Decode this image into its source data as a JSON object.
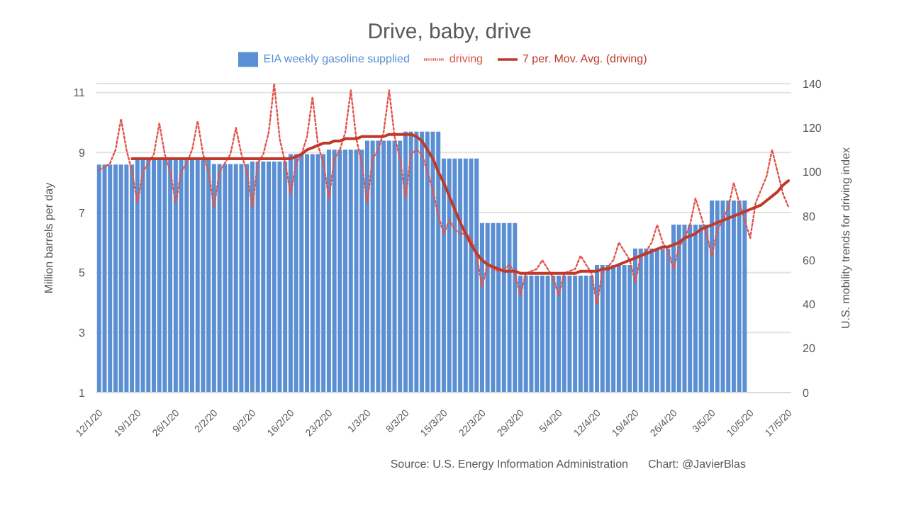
{
  "chart_data": {
    "type": "bar",
    "title": "Drive, baby, drive",
    "ylabel": "Million barrels per day",
    "y2label": "U.S. mobility trends for driving index",
    "categories": [
      "12/1/20",
      null,
      null,
      null,
      null,
      null,
      null,
      "19/1/20",
      null,
      null,
      null,
      null,
      null,
      null,
      "26/1/20",
      null,
      null,
      null,
      null,
      null,
      null,
      "2/2/20",
      null,
      null,
      null,
      null,
      null,
      null,
      "9/2/20",
      null,
      null,
      null,
      null,
      null,
      null,
      "16/2/20",
      null,
      null,
      null,
      null,
      null,
      null,
      "23/2/20",
      null,
      null,
      null,
      null,
      null,
      null,
      "1/3/20",
      null,
      null,
      null,
      null,
      null,
      null,
      "8/3/20",
      null,
      null,
      null,
      null,
      null,
      null,
      "15/3/20",
      null,
      null,
      null,
      null,
      null,
      null,
      "22/3/20",
      null,
      null,
      null,
      null,
      null,
      null,
      "29/3/20",
      null,
      null,
      null,
      null,
      null,
      null,
      "5/4/20",
      null,
      null,
      null,
      null,
      null,
      null,
      "12/4/20",
      null,
      null,
      null,
      null,
      null,
      null,
      "19/4/20",
      null,
      null,
      null,
      null,
      null,
      null,
      "26/4/20",
      null,
      null,
      null,
      null,
      null,
      null,
      "3/5/20",
      null,
      null,
      null,
      null,
      null,
      null,
      "10/5/20",
      null,
      null,
      null,
      null,
      null,
      null,
      "17/5/20"
    ],
    "series": [
      {
        "name": "EIA weekly gasoline supplied",
        "color": "#5b8fd3",
        "values": [
          8.6,
          8.6,
          8.6,
          8.6,
          8.6,
          8.6,
          8.6,
          8.82,
          8.82,
          8.82,
          8.82,
          8.82,
          8.82,
          8.82,
          8.82,
          8.82,
          8.82,
          8.82,
          8.82,
          8.82,
          8.82,
          8.62,
          8.62,
          8.62,
          8.62,
          8.62,
          8.62,
          8.62,
          8.7,
          8.7,
          8.7,
          8.7,
          8.7,
          8.7,
          8.7,
          8.95,
          8.95,
          8.95,
          8.95,
          8.95,
          8.95,
          8.95,
          9.1,
          9.1,
          9.1,
          9.1,
          9.1,
          9.1,
          9.1,
          9.4,
          9.4,
          9.4,
          9.4,
          9.4,
          9.4,
          9.4,
          9.7,
          9.7,
          9.7,
          9.7,
          9.7,
          9.7,
          9.7,
          8.8,
          8.8,
          8.8,
          8.8,
          8.8,
          8.8,
          8.8,
          6.65,
          6.65,
          6.65,
          6.65,
          6.65,
          6.65,
          6.65,
          4.9,
          4.9,
          4.9,
          4.9,
          4.9,
          4.9,
          4.9,
          4.9,
          4.9,
          4.9,
          4.9,
          4.9,
          4.9,
          4.9,
          5.25,
          5.25,
          5.25,
          5.25,
          5.25,
          5.25,
          5.25,
          5.8,
          5.8,
          5.8,
          5.8,
          5.8,
          5.8,
          5.8,
          6.6,
          6.6,
          6.6,
          6.6,
          6.6,
          6.6,
          6.6,
          7.4,
          7.4,
          7.4,
          7.4,
          7.4,
          7.4,
          7.4,
          null,
          null,
          null,
          null,
          null,
          null,
          null,
          null
        ]
      },
      {
        "name": "driving",
        "type": "line",
        "axis": "y2",
        "color": "#e0554c",
        "line_style": "dotted",
        "values": [
          101,
          102,
          104,
          110,
          124,
          110,
          100,
          86,
          100,
          104,
          108,
          122,
          108,
          100,
          86,
          100,
          104,
          110,
          123,
          108,
          100,
          84,
          100,
          104,
          108,
          120,
          108,
          100,
          84,
          104,
          108,
          118,
          140,
          115,
          104,
          90,
          104,
          108,
          116,
          134,
          112,
          104,
          88,
          106,
          110,
          118,
          137,
          115,
          104,
          86,
          106,
          110,
          118,
          137,
          116,
          106,
          88,
          108,
          110,
          108,
          100,
          92,
          80,
          72,
          78,
          74,
          72,
          72,
          70,
          62,
          48,
          58,
          56,
          55,
          56,
          58,
          54,
          44,
          54,
          55,
          56,
          60,
          56,
          52,
          44,
          54,
          55,
          56,
          62,
          58,
          54,
          40,
          55,
          57,
          60,
          68,
          64,
          60,
          50,
          62,
          64,
          68,
          76,
          68,
          64,
          56,
          66,
          70,
          76,
          88,
          80,
          72,
          62,
          74,
          78,
          84,
          95,
          86,
          78,
          70,
          86,
          92,
          98,
          110,
          100,
          90,
          84
        ]
      },
      {
        "name": "7 per. Mov. Avg. (driving)",
        "type": "line",
        "axis": "y2",
        "color": "#c0392b",
        "line_style": "solid",
        "values": [
          null,
          null,
          null,
          null,
          null,
          null,
          106,
          106,
          106,
          106,
          106,
          106,
          106,
          106,
          106,
          106,
          106,
          106,
          106,
          106,
          106,
          106,
          106,
          106,
          106,
          106,
          106,
          106,
          106,
          106,
          106,
          106,
          106,
          106,
          106,
          106,
          107,
          108,
          110,
          111,
          112,
          113,
          113,
          114,
          114,
          115,
          115,
          115,
          116,
          116,
          116,
          116,
          116,
          117,
          117,
          117,
          117,
          117,
          116,
          114,
          110,
          106,
          100,
          95,
          89,
          83,
          77,
          72,
          67,
          63,
          60,
          58,
          57,
          56,
          55,
          55,
          55,
          54,
          54,
          54,
          54,
          54,
          54,
          54,
          54,
          54,
          54,
          54,
          55,
          55,
          55,
          55,
          56,
          56,
          57,
          58,
          59,
          60,
          61,
          62,
          63,
          64,
          65,
          66,
          66,
          67,
          68,
          70,
          71,
          72,
          74,
          75,
          76,
          77,
          78,
          79,
          80,
          81,
          82,
          83,
          84,
          85,
          87,
          89,
          91,
          94,
          96
        ]
      }
    ],
    "ylim": [
      1,
      11.3
    ],
    "yticks": [
      1,
      3,
      5,
      7,
      9,
      11
    ],
    "y2lim": [
      0,
      140
    ],
    "y2ticks": [
      0,
      20,
      40,
      60,
      80,
      100,
      120,
      140
    ],
    "grid": "y",
    "legend": "top",
    "marker": "none",
    "annotations": [
      "Source: U.S. Energy Information Administration",
      "Chart: @JavierBlas"
    ]
  }
}
